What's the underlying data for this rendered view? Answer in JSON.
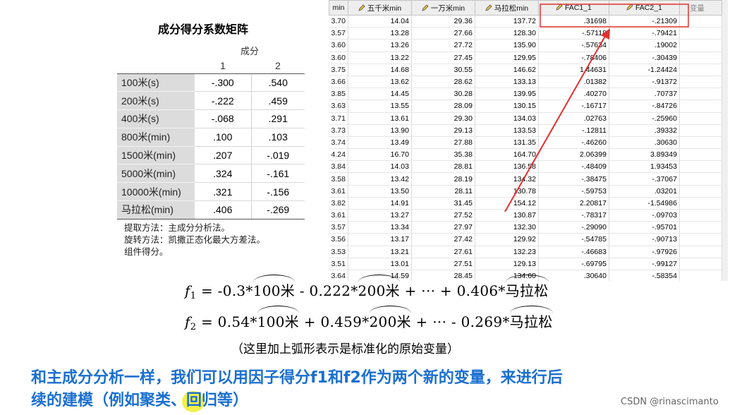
{
  "coef": {
    "title": "成分得分系数矩阵",
    "component_header": "成分",
    "col1": "1",
    "col2": "2",
    "rows": [
      {
        "label": "100米(s)",
        "v1": "-.300",
        "v2": ".540"
      },
      {
        "label": "200米(s)",
        "v1": "-.222",
        "v2": ".459"
      },
      {
        "label": "400米(s)",
        "v1": "-.068",
        "v2": ".291"
      },
      {
        "label": "800米(min)",
        "v1": ".100",
        "v2": ".103"
      },
      {
        "label": "1500米(min)",
        "v1": ".207",
        "v2": "-.019"
      },
      {
        "label": "5000米(min)",
        "v1": ".324",
        "v2": "-.161"
      },
      {
        "label": "10000米(min)",
        "v1": ".321",
        "v2": "-.156"
      },
      {
        "label": "马拉松(min)",
        "v1": ".406",
        "v2": "-.269"
      }
    ],
    "notes": [
      "提取方法：主成分分析法。",
      "旋转方法：凯撒正态化最大方差法。",
      "组件得分。"
    ]
  },
  "grid": {
    "headers": [
      "min",
      "五千米min",
      "一万米min",
      "马拉松min",
      "FAC1_1",
      "FAC2_1",
      "变量"
    ],
    "rows": [
      [
        "3.70",
        "14.04",
        "29.36",
        "137.72",
        ".31698",
        "-.21309"
      ],
      [
        "3.57",
        "13.28",
        "27.66",
        "128.30",
        "-.57118",
        "-.79421"
      ],
      [
        "3.60",
        "13.26",
        "27.72",
        "135.90",
        "-.57634",
        ".19002"
      ],
      [
        "3.60",
        "13.22",
        "27.45",
        "129.95",
        "-.78406",
        "-.30439"
      ],
      [
        "3.75",
        "14.68",
        "30.55",
        "146.62",
        "1.44631",
        "-1.24424"
      ],
      [
        "3.66",
        "13.62",
        "28.62",
        "133.13",
        ".01382",
        "-.91372"
      ],
      [
        "3.85",
        "14.45",
        "30.28",
        "139.95",
        ".40270",
        ".70737"
      ],
      [
        "3.63",
        "13.55",
        "28.09",
        "130.15",
        "-.16717",
        "-.84726"
      ],
      [
        "3.71",
        "13.61",
        "29.30",
        "134.03",
        ".02763",
        "-.25960"
      ],
      [
        "3.73",
        "13.90",
        "29.13",
        "133.53",
        "-.12811",
        ".39332"
      ],
      [
        "3.74",
        "13.49",
        "27.88",
        "131.35",
        "-.46260",
        ".30630"
      ],
      [
        "4.24",
        "16.70",
        "35.38",
        "164.70",
        "2.06399",
        "3.89349"
      ],
      [
        "3.84",
        "14.03",
        "28.81",
        "136.58",
        "-.48409",
        "1.93453"
      ],
      [
        "3.58",
        "13.42",
        "28.19",
        "134.32",
        "-.38475",
        "-.37067"
      ],
      [
        "3.61",
        "13.50",
        "28.11",
        "130.78",
        "-.59753",
        ".03201"
      ],
      [
        "3.82",
        "14.91",
        "31.45",
        "154.12",
        "2.20817",
        "-1.54986"
      ],
      [
        "3.61",
        "13.27",
        "27.52",
        "130.87",
        "-.78317",
        "-.09703"
      ],
      [
        "3.57",
        "13.34",
        "27.97",
        "132.30",
        "-.29090",
        "-.95701"
      ],
      [
        "3.56",
        "13.17",
        "27.42",
        "129.92",
        "-.54785",
        "-.90713"
      ],
      [
        "3.53",
        "13.21",
        "27.61",
        "132.23",
        "-.46683",
        "-.97926"
      ],
      [
        "3.51",
        "13.01",
        "27.51",
        "129.13",
        "-.69795",
        "-.99127"
      ],
      [
        "3.64",
        "14.59",
        "28.45",
        "134.60",
        ".30640",
        "-.58354"
      ]
    ]
  },
  "formulas": {
    "f1": {
      "name": "f",
      "sub": "1",
      "eq": "= -0.3*",
      "t1": "100米",
      "mid1": " - 0.222*",
      "t2": "200米",
      "mid2": " + ··· + 0.406*",
      "t3": "马拉松"
    },
    "f2": {
      "name": "f",
      "sub": "2",
      "eq": "= 0.54*",
      "t1": "100米",
      "mid1": " + 0.459*",
      "t2": "200米",
      "mid2": " + ··· - 0.269*",
      "t3": "马拉松"
    },
    "note": "（这里加上弧形表示是标准化的原始变量）"
  },
  "bottom": {
    "line_a": "和主成分分析一样，我们可以用因子得分f1和f2作为两个新的变量，来进行后",
    "line_b_pre": "续的建模（例如聚类、",
    "line_b_hl": "回",
    "line_b_post": "归等）"
  },
  "watermark": "CSDN @rinascimanto",
  "colors": {
    "annotation_red": "#e03030",
    "text_blue": "#1a6fd1",
    "highlight_yellow": "#f3f04a"
  }
}
